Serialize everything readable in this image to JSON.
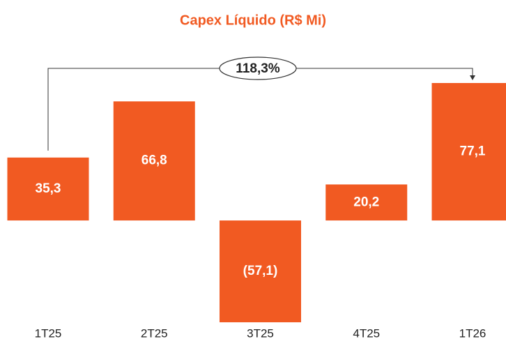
{
  "chart_data": {
    "type": "bar",
    "title": "Capex Líquido (R$ Mi)",
    "categories": [
      "1T25",
      "2T25",
      "3T25",
      "4T25",
      "1T26"
    ],
    "values": [
      35.3,
      66.8,
      -57.1,
      20.2,
      77.1
    ],
    "value_labels": [
      "35,3",
      "66,8",
      "(57,1)",
      "20,2",
      "77,1"
    ],
    "color": "#f15a22",
    "annotation": "118,3%"
  }
}
